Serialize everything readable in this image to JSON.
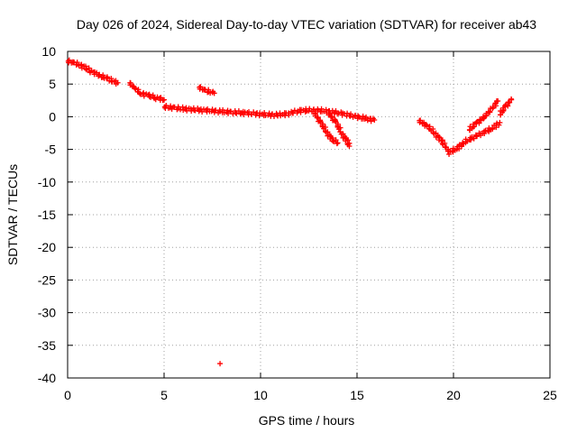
{
  "chart_data": {
    "type": "scatter",
    "title": "Day 026 of 2024, Sidereal Day-to-day VTEC variation (SDTVAR) for receiver ab43",
    "xlabel": "GPS time / hours",
    "ylabel": "SDTVAR / TECUs",
    "xlim": [
      0,
      25
    ],
    "ylim": [
      -40,
      10
    ],
    "xticks": [
      0,
      5,
      10,
      15,
      20,
      25
    ],
    "yticks": [
      10,
      5,
      0,
      -5,
      -10,
      -15,
      -20,
      -25,
      -30,
      -35,
      -40
    ],
    "grid": true,
    "marker": "plus",
    "series_color": "#ff0000",
    "segments": [
      {
        "name": "seg1",
        "points": [
          [
            0.0,
            8.5
          ],
          [
            0.3,
            8.3
          ],
          [
            0.6,
            8.0
          ],
          [
            0.9,
            7.5
          ],
          [
            1.2,
            7.0
          ],
          [
            1.5,
            6.5
          ],
          [
            1.8,
            6.2
          ],
          [
            2.1,
            5.8
          ],
          [
            2.4,
            5.4
          ],
          [
            2.6,
            5.2
          ]
        ]
      },
      {
        "name": "seg2",
        "points": [
          [
            3.2,
            5.2
          ],
          [
            3.5,
            4.3
          ],
          [
            3.8,
            3.6
          ],
          [
            4.2,
            3.2
          ],
          [
            4.6,
            2.9
          ],
          [
            5.0,
            2.6
          ]
        ]
      },
      {
        "name": "seg3",
        "points": [
          [
            5.0,
            1.5
          ],
          [
            5.5,
            1.4
          ],
          [
            6.0,
            1.2
          ],
          [
            6.5,
            1.1
          ],
          [
            7.0,
            1.0
          ],
          [
            7.5,
            0.9
          ],
          [
            8.0,
            0.8
          ],
          [
            8.5,
            0.7
          ],
          [
            9.0,
            0.6
          ],
          [
            9.5,
            0.5
          ],
          [
            10.0,
            0.4
          ],
          [
            10.5,
            0.3
          ],
          [
            11.0,
            0.3
          ],
          [
            11.5,
            0.5
          ],
          [
            12.0,
            0.9
          ],
          [
            12.5,
            1.0
          ],
          [
            13.0,
            1.0
          ],
          [
            13.5,
            0.8
          ],
          [
            14.0,
            0.6
          ],
          [
            14.5,
            0.3
          ],
          [
            15.0,
            0.0
          ],
          [
            15.5,
            -0.3
          ],
          [
            15.9,
            -0.5
          ]
        ]
      },
      {
        "name": "seg4",
        "points": [
          [
            6.8,
            4.5
          ],
          [
            7.1,
            4.1
          ],
          [
            7.4,
            3.8
          ],
          [
            7.6,
            3.6
          ]
        ]
      },
      {
        "name": "seg5",
        "points": [
          [
            12.8,
            0.5
          ],
          [
            13.1,
            -0.8
          ],
          [
            13.4,
            -2.2
          ],
          [
            13.7,
            -3.5
          ],
          [
            14.0,
            -4.0
          ]
        ]
      },
      {
        "name": "seg6",
        "points": [
          [
            13.5,
            0.6
          ],
          [
            13.9,
            -0.8
          ],
          [
            14.2,
            -2.5
          ],
          [
            14.5,
            -3.8
          ],
          [
            14.6,
            -4.5
          ]
        ]
      },
      {
        "name": "seg7",
        "points": [
          [
            18.2,
            -0.6
          ],
          [
            18.6,
            -1.3
          ],
          [
            19.0,
            -2.4
          ],
          [
            19.4,
            -3.8
          ],
          [
            19.8,
            -5.5
          ],
          [
            20.2,
            -4.8
          ],
          [
            20.6,
            -3.8
          ],
          [
            21.0,
            -3.2
          ],
          [
            21.5,
            -2.5
          ],
          [
            22.0,
            -1.8
          ],
          [
            22.4,
            -0.9
          ]
        ]
      },
      {
        "name": "seg8",
        "points": [
          [
            20.8,
            -2.0
          ],
          [
            21.2,
            -1.0
          ],
          [
            21.6,
            0.0
          ],
          [
            22.0,
            1.2
          ],
          [
            22.3,
            2.4
          ]
        ]
      },
      {
        "name": "seg9",
        "points": [
          [
            22.4,
            0.3
          ],
          [
            22.7,
            1.6
          ],
          [
            23.0,
            2.6
          ]
        ]
      },
      {
        "name": "outlier",
        "points": [
          [
            7.9,
            -37.8
          ]
        ]
      }
    ]
  }
}
